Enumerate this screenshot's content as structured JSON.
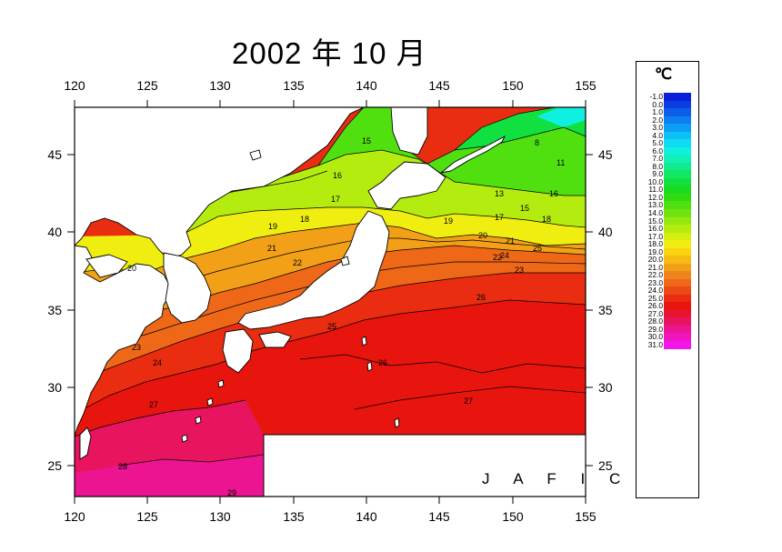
{
  "title": "2002 年 10 月",
  "map": {
    "lon_range": [
      120,
      155
    ],
    "lat_range": [
      23,
      48
    ],
    "lon_ticks": [
      "120",
      "125",
      "130",
      "135",
      "140",
      "145",
      "150",
      "155"
    ],
    "lat_ticks": [
      "25",
      "30",
      "35",
      "40",
      "45"
    ],
    "contour_labels": [
      "15",
      "16",
      "17",
      "18",
      "19",
      "20",
      "21",
      "22",
      "23",
      "24",
      "25",
      "26",
      "27",
      "28",
      "29",
      "8",
      "11",
      "13",
      "15",
      "16",
      "17",
      "18",
      "19",
      "20",
      "21",
      "22",
      "23",
      "24",
      "25",
      "26",
      "27"
    ],
    "credit": "J A F I C"
  },
  "legend": {
    "unit": "℃",
    "levels": [
      {
        "label": "-1.0",
        "color": "#0a1fd8"
      },
      {
        "label": "0.0",
        "color": "#0a3ee0"
      },
      {
        "label": "1.0",
        "color": "#0a5ee8"
      },
      {
        "label": "2.0",
        "color": "#0b7ef0"
      },
      {
        "label": "3.0",
        "color": "#0c9ef4"
      },
      {
        "label": "4.0",
        "color": "#0dc0f6"
      },
      {
        "label": "5.0",
        "color": "#0fdcf4"
      },
      {
        "label": "6.0",
        "color": "#10f0e0"
      },
      {
        "label": "7.0",
        "color": "#10f0b8"
      },
      {
        "label": "8.0",
        "color": "#10ec8c"
      },
      {
        "label": "9.0",
        "color": "#10e864"
      },
      {
        "label": "10.0",
        "color": "#10e040"
      },
      {
        "label": "11.0",
        "color": "#18dc20"
      },
      {
        "label": "12.0",
        "color": "#30dc10"
      },
      {
        "label": "13.0",
        "color": "#50e010"
      },
      {
        "label": "14.0",
        "color": "#70e410"
      },
      {
        "label": "15.0",
        "color": "#94e810"
      },
      {
        "label": "16.0",
        "color": "#b4ec10"
      },
      {
        "label": "17.0",
        "color": "#d4ee10"
      },
      {
        "label": "18.0",
        "color": "#f0ee10"
      },
      {
        "label": "19.0",
        "color": "#fad410"
      },
      {
        "label": "20.0",
        "color": "#f6bc14"
      },
      {
        "label": "21.0",
        "color": "#f2a018"
      },
      {
        "label": "22.0",
        "color": "#f0841c"
      },
      {
        "label": "23.0",
        "color": "#ee6818"
      },
      {
        "label": "24.0",
        "color": "#ec4a14"
      },
      {
        "label": "25.0",
        "color": "#ea2c10"
      },
      {
        "label": "26.0",
        "color": "#e8140e"
      },
      {
        "label": "27.0",
        "color": "#e81432"
      },
      {
        "label": "28.0",
        "color": "#e81460"
      },
      {
        "label": "29.0",
        "color": "#ec1490"
      },
      {
        "label": "30.0",
        "color": "#f014c0"
      },
      {
        "label": "31.0",
        "color": "#f414ec"
      }
    ]
  }
}
